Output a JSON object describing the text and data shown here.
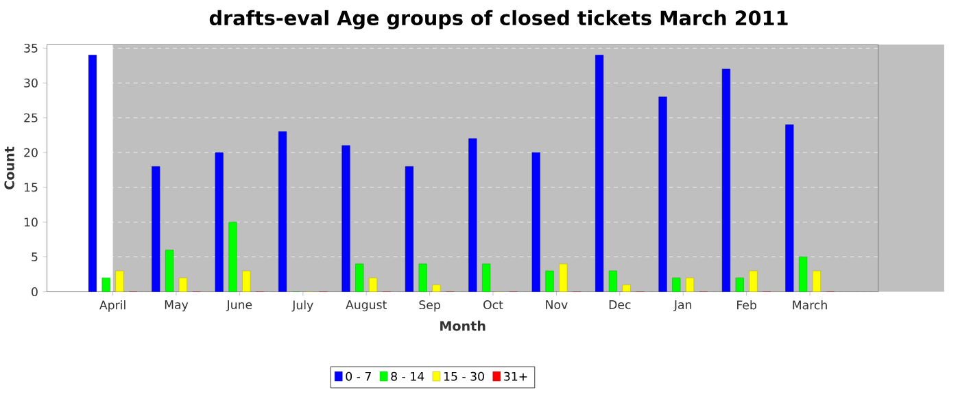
{
  "chart_data": {
    "type": "bar",
    "title": "drafts-eval Age groups of closed tickets March 2011",
    "xlabel": "Month",
    "ylabel": "Count",
    "categories": [
      "April",
      "May",
      "June",
      "July",
      "August",
      "Sep",
      "Oct",
      "Nov",
      "Dec",
      "Jan",
      "Feb",
      "March"
    ],
    "series": [
      {
        "name": "0 - 7",
        "color": "#0000ff",
        "values": [
          34,
          18,
          20,
          23,
          21,
          18,
          22,
          20,
          34,
          28,
          32,
          24
        ]
      },
      {
        "name": "8 - 14",
        "color": "#00ff00",
        "values": [
          2,
          6,
          10,
          0,
          4,
          4,
          4,
          3,
          3,
          2,
          2,
          5
        ]
      },
      {
        "name": "15 - 30",
        "color": "#ffff00",
        "values": [
          3,
          2,
          3,
          0,
          2,
          1,
          0,
          4,
          1,
          2,
          3,
          3
        ]
      },
      {
        "name": "31+",
        "color": "#ff0000",
        "values": [
          0,
          0,
          0,
          0,
          0,
          0,
          0,
          0,
          0,
          0,
          0,
          0
        ]
      }
    ],
    "ylim": [
      0,
      35.5
    ],
    "yticks": [
      0,
      5,
      10,
      15,
      20,
      25,
      30,
      35
    ],
    "grid": "y",
    "legend": "bottom"
  }
}
